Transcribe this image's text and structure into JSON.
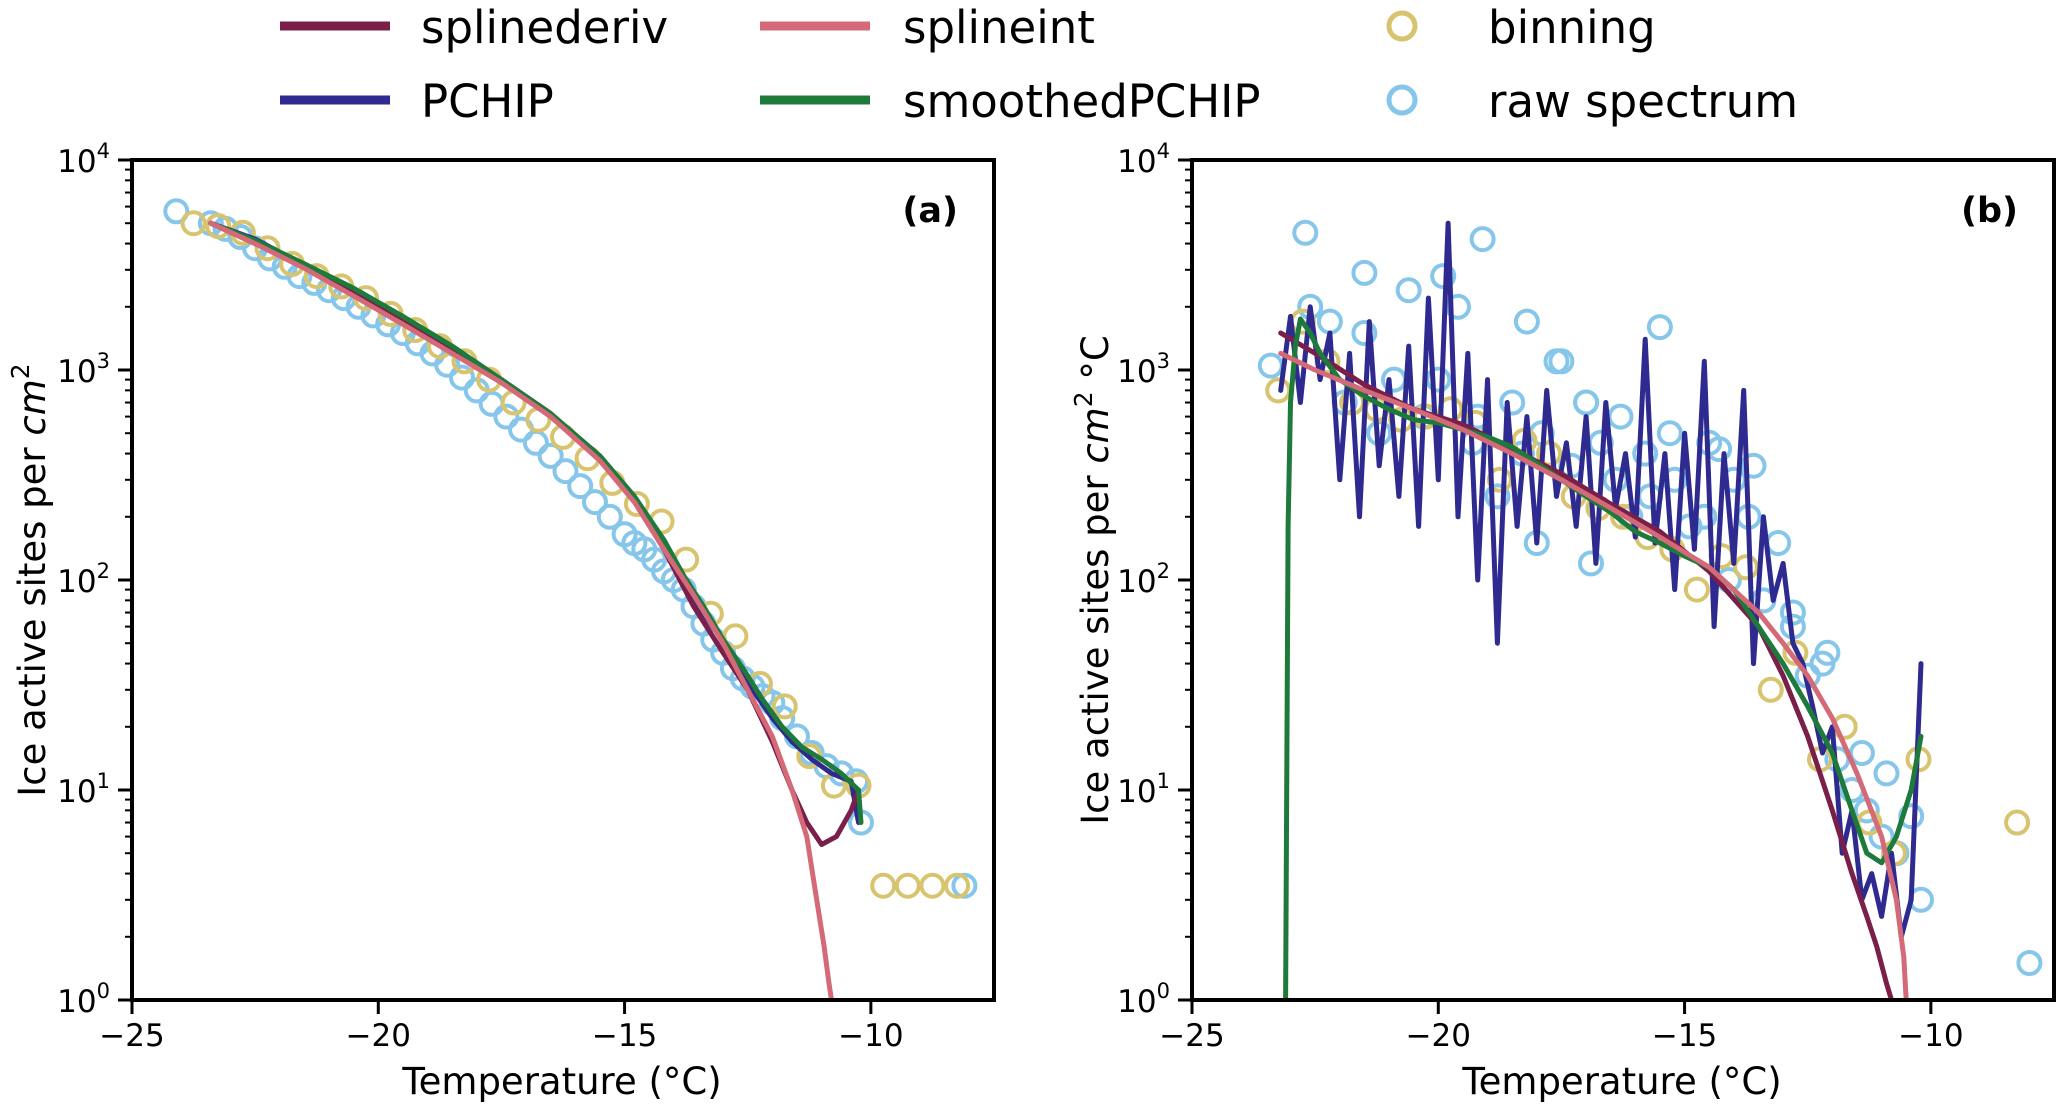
{
  "legend": {
    "entries": [
      {
        "label": "splinederiv",
        "kind": "line",
        "color": "#7a1f4a"
      },
      {
        "label": "splineint",
        "kind": "line",
        "color": "#d46a78"
      },
      {
        "label": "binning",
        "kind": "marker",
        "color": "#d8c46e"
      },
      {
        "label": "PCHIP",
        "kind": "line",
        "color": "#2e2a8f"
      },
      {
        "label": "smoothedPCHIP",
        "kind": "line",
        "color": "#1d7a3a"
      },
      {
        "label": "raw spectrum",
        "kind": "marker",
        "color": "#86c6ea"
      }
    ]
  },
  "chart_data": [
    {
      "type": "line",
      "panel_label": "(a)",
      "xlabel": "Temperature (°C)",
      "ylabel_text": "Ice active sites per ",
      "ylabel_unit": "cm",
      "ylabel_exp": "2",
      "ylabel_suffix": "",
      "yscale": "log",
      "xlim": [
        -25,
        -7.5
      ],
      "ylim": [
        1,
        10000
      ],
      "xticks": [
        -25,
        -20,
        -15,
        -10
      ],
      "xtick_labels": [
        "−25",
        "−20",
        "−15",
        "−10"
      ],
      "yticks": [
        1,
        10,
        100,
        1000,
        10000
      ],
      "ytick_exponents": [
        "0",
        "1",
        "2",
        "3",
        "4"
      ],
      "ytick_base": "10",
      "series": [
        {
          "name": "raw spectrum",
          "kind": "marker",
          "color": "#86c6ea",
          "x": [
            -24.1,
            -23.4,
            -23.1,
            -22.8,
            -22.5,
            -22.2,
            -21.9,
            -21.6,
            -21.3,
            -21.0,
            -20.7,
            -20.4,
            -20.1,
            -19.8,
            -19.5,
            -19.2,
            -18.9,
            -18.6,
            -18.3,
            -18.0,
            -17.7,
            -17.4,
            -17.1,
            -16.8,
            -16.5,
            -16.2,
            -15.9,
            -15.6,
            -15.3,
            -15.0,
            -14.8,
            -14.6,
            -14.4,
            -14.2,
            -14.0,
            -13.8,
            -13.6,
            -13.4,
            -13.2,
            -13.0,
            -12.8,
            -12.6,
            -12.4,
            -12.2,
            -12.0,
            -11.8,
            -11.5,
            -11.2,
            -10.9,
            -10.6,
            -10.3,
            -10.2,
            -8.1
          ],
          "y": [
            5700,
            5000,
            4700,
            4300,
            3800,
            3400,
            3100,
            2800,
            2600,
            2400,
            2200,
            2000,
            1820,
            1650,
            1500,
            1340,
            1200,
            1060,
            920,
            800,
            690,
            600,
            520,
            450,
            390,
            330,
            280,
            235,
            200,
            165,
            150,
            140,
            125,
            110,
            100,
            90,
            75,
            62,
            52,
            45,
            38,
            34,
            31,
            28,
            26,
            22,
            18,
            15,
            13,
            12,
            11,
            7,
            3.5
          ]
        },
        {
          "name": "binning",
          "kind": "marker",
          "color": "#d8c46e",
          "x": [
            -23.75,
            -23.25,
            -22.75,
            -22.25,
            -21.75,
            -21.25,
            -20.75,
            -20.25,
            -19.75,
            -19.25,
            -18.75,
            -18.25,
            -17.75,
            -17.25,
            -16.75,
            -16.25,
            -15.75,
            -15.25,
            -14.75,
            -14.25,
            -13.75,
            -13.25,
            -12.75,
            -12.25,
            -11.75,
            -11.25,
            -10.75,
            -10.25,
            -9.75,
            -9.25,
            -8.75,
            -8.25
          ],
          "y": [
            5000,
            4850,
            4500,
            3800,
            3200,
            2800,
            2500,
            2200,
            1850,
            1550,
            1300,
            1100,
            900,
            700,
            580,
            480,
            380,
            290,
            230,
            190,
            125,
            69,
            54,
            32,
            25,
            14.5,
            10.5,
            10.5,
            3.5,
            3.5,
            3.5,
            3.5
          ]
        },
        {
          "name": "splinederiv",
          "kind": "line",
          "color": "#7a1f4a",
          "x": [
            -23.4,
            -22.5,
            -21.5,
            -20.5,
            -19.5,
            -18.5,
            -17.5,
            -16.5,
            -15.5,
            -14.8,
            -14.2,
            -13.6,
            -13.0,
            -12.5,
            -12.0,
            -11.6,
            -11.3,
            -11.0,
            -10.7,
            -10.4,
            -10.25
          ],
          "y": [
            5000,
            4000,
            3100,
            2300,
            1700,
            1250,
            900,
            620,
            380,
            240,
            140,
            75,
            45,
            30,
            17,
            10,
            7,
            5.5,
            6,
            8,
            10
          ]
        },
        {
          "name": "PCHIP",
          "kind": "line",
          "color": "#2e2a8f",
          "x": [
            -23.4,
            -22.5,
            -21.5,
            -20.5,
            -19.5,
            -18.5,
            -17.5,
            -16.5,
            -15.5,
            -14.8,
            -14.2,
            -13.8,
            -13.5,
            -13.1,
            -12.8,
            -12.4,
            -12.0,
            -11.6,
            -11.2,
            -10.8,
            -10.4,
            -10.25
          ],
          "y": [
            5000,
            4200,
            3150,
            2400,
            1750,
            1250,
            880,
            600,
            380,
            240,
            150,
            100,
            75,
            55,
            42,
            30,
            22,
            17,
            14,
            12,
            11,
            7
          ]
        },
        {
          "name": "smoothedPCHIP",
          "kind": "line",
          "color": "#1d7a3a",
          "x": [
            -23.4,
            -22.5,
            -21.5,
            -20.5,
            -19.5,
            -18.5,
            -17.5,
            -16.5,
            -15.5,
            -14.8,
            -14.2,
            -13.8,
            -13.4,
            -13.0,
            -12.6,
            -12.2,
            -11.8,
            -11.4,
            -11.0,
            -10.6,
            -10.25,
            -10.2
          ],
          "y": [
            5000,
            4150,
            3200,
            2450,
            1800,
            1300,
            900,
            620,
            390,
            250,
            155,
            105,
            75,
            52,
            38,
            27,
            20,
            16,
            14,
            12,
            10,
            7
          ]
        },
        {
          "name": "splineint",
          "kind": "line",
          "color": "#d46a78",
          "x": [
            -23.4,
            -22.5,
            -21.5,
            -20.5,
            -19.5,
            -18.5,
            -17.5,
            -16.5,
            -15.5,
            -14.8,
            -14.2,
            -13.6,
            -13.0,
            -12.5,
            -12.0,
            -11.6,
            -11.3,
            -11.1,
            -10.95,
            -10.85,
            -10.8
          ],
          "y": [
            5000,
            4000,
            3050,
            2250,
            1650,
            1200,
            870,
            600,
            370,
            235,
            140,
            85,
            50,
            30,
            18,
            10,
            6,
            3,
            1.8,
            1.2,
            1
          ]
        }
      ]
    },
    {
      "type": "line",
      "panel_label": "(b)",
      "xlabel": "Temperature (°C)",
      "ylabel_text": "Ice active sites per ",
      "ylabel_unit": "cm",
      "ylabel_exp": "2",
      "ylabel_suffix": " °C",
      "yscale": "log",
      "xlim": [
        -25,
        -7.5
      ],
      "ylim": [
        1,
        10000
      ],
      "xticks": [
        -25,
        -20,
        -15,
        -10
      ],
      "xtick_labels": [
        "−25",
        "−20",
        "−15",
        "−10"
      ],
      "yticks": [
        1,
        10,
        100,
        1000,
        10000
      ],
      "ytick_exponents": [
        "0",
        "1",
        "2",
        "3",
        "4"
      ],
      "ytick_base": "10",
      "series": [
        {
          "name": "raw spectrum",
          "kind": "marker",
          "color": "#86c6ea",
          "x": [
            -23.4,
            -22.7,
            -22.2,
            -21.9,
            -21.5,
            -21.2,
            -20.9,
            -20.6,
            -20.3,
            -19.9,
            -19.6,
            -19.3,
            -19.1,
            -18.8,
            -18.5,
            -18.2,
            -17.9,
            -17.6,
            -17.3,
            -17.0,
            -16.7,
            -16.4,
            -16.1,
            -15.8,
            -15.5,
            -15.2,
            -14.9,
            -14.6,
            -14.3,
            -14.0,
            -13.7,
            -13.4,
            -13.1,
            -12.8,
            -12.5,
            -12.2,
            -11.9,
            -11.6,
            -11.3,
            -11.0,
            -10.7,
            -10.4,
            -10.2,
            -8.0,
            -22.6,
            -21.5,
            -20.0,
            -19.2,
            -18.3,
            -17.5,
            -17.0,
            -16.3,
            -15.3,
            -14.5,
            -13.6,
            -12.8,
            -12.1,
            -11.4,
            -10.9,
            -18.0,
            -16.9,
            -15.7,
            -14.1
          ],
          "y": [
            1050,
            4500,
            1700,
            700,
            2900,
            500,
            900,
            2400,
            600,
            2800,
            2000,
            450,
            4200,
            250,
            700,
            1700,
            500,
            1100,
            350,
            700,
            450,
            300,
            200,
            400,
            1600,
            300,
            180,
            200,
            420,
            300,
            200,
            80,
            150,
            60,
            35,
            40,
            14,
            10,
            8,
            6,
            5,
            7.5,
            3,
            1.5,
            2000,
            1500,
            900,
            600,
            400,
            1100,
            700,
            600,
            500,
            450,
            350,
            70,
            45,
            15,
            12,
            150,
            120,
            250,
            100
          ]
        },
        {
          "name": "binning",
          "kind": "marker",
          "color": "#d8c46e",
          "x": [
            -23.25,
            -22.75,
            -22.25,
            -21.75,
            -21.25,
            -20.75,
            -20.25,
            -19.75,
            -19.25,
            -18.75,
            -18.25,
            -17.75,
            -17.25,
            -16.75,
            -16.25,
            -15.75,
            -15.25,
            -14.75,
            -14.25,
            -13.75,
            -13.25,
            -12.75,
            -12.25,
            -11.75,
            -11.25,
            -10.75,
            -10.25,
            -8.25
          ],
          "y": [
            800,
            1700,
            1100,
            700,
            650,
            580,
            600,
            650,
            560,
            300,
            460,
            400,
            250,
            220,
            200,
            160,
            140,
            90,
            130,
            115,
            30,
            45,
            14,
            20,
            7,
            5,
            14,
            7
          ]
        },
        {
          "name": "PCHIP",
          "kind": "line",
          "color": "#2e2a8f",
          "x": [
            -23.2,
            -23.0,
            -22.8,
            -22.6,
            -22.4,
            -22.2,
            -22.0,
            -21.8,
            -21.6,
            -21.4,
            -21.2,
            -21.0,
            -20.8,
            -20.6,
            -20.4,
            -20.2,
            -20.0,
            -19.8,
            -19.6,
            -19.4,
            -19.2,
            -19.0,
            -18.8,
            -18.6,
            -18.4,
            -18.2,
            -18.0,
            -17.8,
            -17.6,
            -17.4,
            -17.2,
            -17.0,
            -16.8,
            -16.6,
            -16.4,
            -16.2,
            -16.0,
            -15.8,
            -15.6,
            -15.4,
            -15.2,
            -15.0,
            -14.8,
            -14.6,
            -14.4,
            -14.2,
            -14.0,
            -13.8,
            -13.6,
            -13.4,
            -13.2,
            -13.0,
            -12.8,
            -12.6,
            -12.4,
            -12.2,
            -12.0,
            -11.8,
            -11.6,
            -11.4,
            -11.2,
            -11.0,
            -10.8,
            -10.6,
            -10.4,
            -10.2
          ],
          "y": [
            800,
            1800,
            700,
            2000,
            900,
            1500,
            300,
            1200,
            200,
            1700,
            350,
            900,
            250,
            1300,
            180,
            2200,
            300,
            5000,
            200,
            1200,
            100,
            900,
            50,
            700,
            180,
            600,
            150,
            800,
            250,
            450,
            180,
            600,
            120,
            700,
            220,
            400,
            160,
            1400,
            150,
            400,
            90,
            500,
            140,
            1100,
            60,
            400,
            120,
            800,
            40,
            200,
            80,
            120,
            50,
            40,
            25,
            15,
            20,
            5,
            8,
            3,
            4,
            2.5,
            5,
            2,
            3,
            40
          ]
        },
        {
          "name": "smoothedPCHIP",
          "kind": "line",
          "color": "#1d7a3a",
          "x": [
            -23.1,
            -23.05,
            -23.0,
            -22.9,
            -22.8,
            -22.6,
            -22.4,
            -22.0,
            -21.5,
            -21.0,
            -20.5,
            -20.0,
            -19.5,
            -19.0,
            -18.5,
            -18.0,
            -17.5,
            -17.0,
            -16.5,
            -16.0,
            -15.5,
            -15.0,
            -14.5,
            -14.0,
            -13.5,
            -13.0,
            -12.5,
            -12.0,
            -11.6,
            -11.3,
            -11.0,
            -10.7,
            -10.4,
            -10.2
          ],
          "y": [
            1,
            180,
            700,
            1300,
            1750,
            1500,
            1200,
            900,
            750,
            650,
            580,
            560,
            520,
            480,
            430,
            360,
            300,
            250,
            210,
            170,
            150,
            130,
            115,
            90,
            60,
            40,
            25,
            15,
            8,
            5,
            4.5,
            6,
            10,
            18
          ]
        },
        {
          "name": "splinederiv",
          "kind": "line",
          "color": "#7a1f4a",
          "x": [
            -23.2,
            -22.5,
            -21.5,
            -20.5,
            -19.5,
            -18.5,
            -17.5,
            -16.5,
            -15.5,
            -14.5,
            -13.5,
            -13.0,
            -12.5,
            -12.0,
            -11.6,
            -11.3,
            -11.1,
            -10.9,
            -10.8
          ],
          "y": [
            1500,
            1200,
            850,
            650,
            550,
            420,
            320,
            230,
            170,
            110,
            60,
            35,
            18,
            8,
            4,
            2.5,
            1.8,
            1.2,
            1
          ]
        },
        {
          "name": "splineint",
          "kind": "line",
          "color": "#d46a78",
          "x": [
            -23.2,
            -22.5,
            -21.5,
            -20.5,
            -19.5,
            -18.5,
            -17.5,
            -16.5,
            -15.5,
            -14.5,
            -13.5,
            -13.0,
            -12.5,
            -12.0,
            -11.5,
            -11.0,
            -10.7,
            -10.55,
            -10.5
          ],
          "y": [
            1200,
            1000,
            800,
            650,
            520,
            400,
            300,
            220,
            160,
            115,
            70,
            50,
            35,
            22,
            12,
            6,
            3,
            1.6,
            1
          ]
        }
      ]
    }
  ]
}
